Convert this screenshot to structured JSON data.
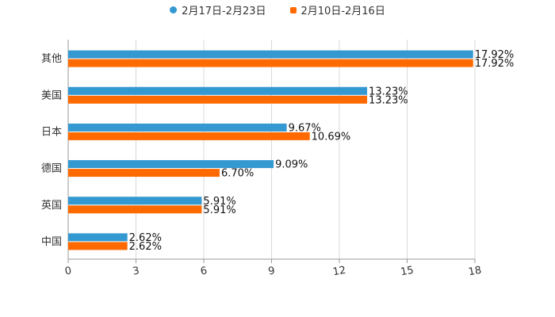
{
  "chart_data": {
    "type": "bar",
    "orientation": "horizontal",
    "categories": [
      "其他",
      "美国",
      "日本",
      "德国",
      "英国",
      "中国"
    ],
    "series": [
      {
        "name": "2月17日-2月23日",
        "color": "#3498d1",
        "values": [
          17.92,
          13.23,
          9.67,
          9.09,
          5.91,
          2.62
        ],
        "labels": [
          "17.92%",
          "13.23%",
          "9.67%",
          "9.09%",
          "5.91%",
          "2.62%"
        ]
      },
      {
        "name": "2月10日-2月16日",
        "color": "#ff6a00",
        "values": [
          17.92,
          13.23,
          10.69,
          6.7,
          5.91,
          2.62
        ],
        "labels": [
          "17.92%",
          "13.23%",
          "10.69%",
          "6.70%",
          "5.91%",
          "2.62%"
        ]
      }
    ],
    "xticks": [
      "0",
      "3",
      "6",
      "9",
      "12",
      "15",
      "18"
    ],
    "xlim": [
      0,
      18
    ],
    "grid": true,
    "legend_position": "top-center",
    "title": "",
    "xlabel": "",
    "ylabel": ""
  }
}
